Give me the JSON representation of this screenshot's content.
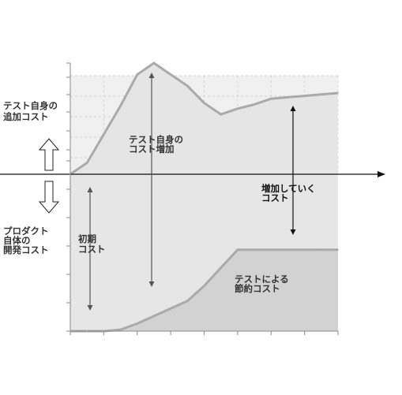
{
  "chart_data": {
    "type": "area",
    "title": "",
    "xlabel": "",
    "ylabel": "",
    "grid": true,
    "x": [
      0,
      1,
      2,
      3,
      4,
      5,
      6,
      7,
      8,
      9,
      10,
      11,
      12,
      13,
      14,
      15,
      16
    ],
    "ylim": [
      -5.3,
      3.7
    ],
    "series": [
      {
        "values": [
          0,
          0.4,
          1.4,
          2.4,
          3.5,
          3.9,
          3.5,
          3.1,
          2.5,
          2.1,
          2.3,
          2.45,
          2.65,
          2.7,
          2.75,
          2.8,
          2.85
        ],
        "color": "#aaaaaa",
        "fill": "#e5e5e5"
      },
      {
        "values": [
          -5.2,
          -5.2,
          -5.2,
          -5.15,
          -4.95,
          -4.7,
          -4.45,
          -4.2,
          -3.7,
          -3.1,
          -2.5,
          -2.5,
          -2.5,
          -2.5,
          -2.5,
          -2.5,
          -2.5
        ],
        "color": "#aaaaaa",
        "fill": "#d2d2d2"
      }
    ],
    "annotations": [
      {
        "lines": [
          "テスト自身の",
          "追加コスト"
        ]
      },
      {
        "lines": [
          "プロダクト",
          "自体の",
          "開発コスト"
        ]
      },
      {
        "lines": [
          "テスト自身の",
          "コスト増加"
        ]
      },
      {
        "lines": [
          "初期",
          "コスト"
        ]
      },
      {
        "lines": [
          "増加していく",
          "コスト"
        ]
      },
      {
        "lines": [
          "テストによる",
          "節約コスト"
        ]
      }
    ]
  }
}
